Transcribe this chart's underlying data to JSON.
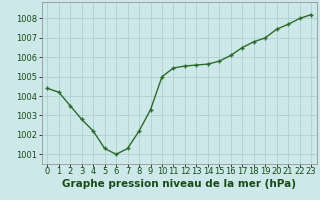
{
  "x": [
    0,
    1,
    2,
    3,
    4,
    5,
    6,
    7,
    8,
    9,
    10,
    11,
    12,
    13,
    14,
    15,
    16,
    17,
    18,
    19,
    20,
    21,
    22,
    23
  ],
  "y": [
    1004.4,
    1004.2,
    1003.5,
    1002.8,
    1002.2,
    1001.3,
    1001.0,
    1001.3,
    1002.2,
    1003.3,
    1005.0,
    1005.45,
    1005.55,
    1005.6,
    1005.65,
    1005.8,
    1006.1,
    1006.5,
    1006.8,
    1007.0,
    1007.45,
    1007.7,
    1008.0,
    1008.2
  ],
  "line_color": "#2d6a2d",
  "marker": "+",
  "marker_color": "#2d6a2d",
  "background_color": "#cce8e8",
  "grid_color": "#aacccc",
  "xlabel_text": "Graphe pression niveau de la mer (hPa)",
  "ylim": [
    1000.5,
    1008.85
  ],
  "yticks": [
    1001,
    1002,
    1003,
    1004,
    1005,
    1006,
    1007,
    1008
  ],
  "xlim": [
    -0.5,
    23.5
  ],
  "xticks": [
    0,
    1,
    2,
    3,
    4,
    5,
    6,
    7,
    8,
    9,
    10,
    11,
    12,
    13,
    14,
    15,
    16,
    17,
    18,
    19,
    20,
    21,
    22,
    23
  ],
  "xlabel_fontsize": 7.5,
  "tick_fontsize": 6.0,
  "line_width": 1.0,
  "marker_size": 3.5,
  "marker_edge_width": 1.0
}
